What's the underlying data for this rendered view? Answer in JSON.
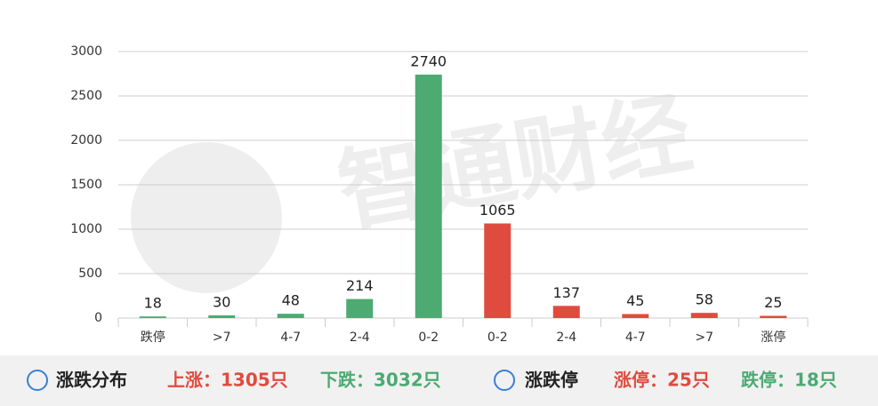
{
  "chart_data": {
    "type": "bar",
    "categories": [
      "跌停",
      ">7",
      "4-7",
      "2-4",
      "0-2",
      "0-2",
      "2-4",
      "4-7",
      ">7",
      "涨停"
    ],
    "values": [
      18,
      30,
      48,
      214,
      2740,
      1065,
      137,
      45,
      58,
      25
    ],
    "colors": [
      "#4caa72",
      "#4caa72",
      "#4caa72",
      "#4caa72",
      "#4caa72",
      "#e04b3f",
      "#e04b3f",
      "#e04b3f",
      "#e04b3f",
      "#e04b3f"
    ],
    "ylim": [
      0,
      3000
    ],
    "yticks": [
      0,
      500,
      1000,
      1500,
      2000,
      2500,
      3000
    ],
    "grid": true,
    "watermark": "智通财经"
  },
  "footer": {
    "left_title": "涨跌分布",
    "rise": "上涨：1305只",
    "fall": "下跌：3032只",
    "right_title": "涨跌停",
    "limit_up": "涨停：25只",
    "limit_down": "跌停：18只"
  }
}
